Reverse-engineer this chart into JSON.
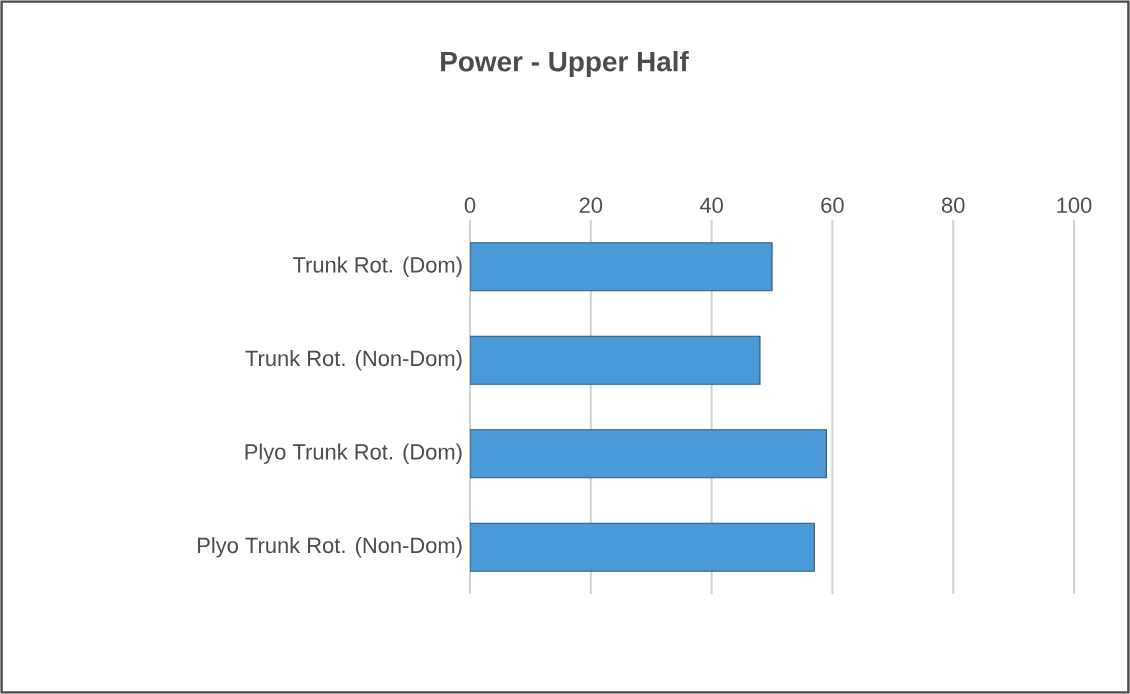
{
  "chart_data": {
    "type": "bar",
    "orientation": "horizontal",
    "title": "Power - Upper Half",
    "categories": [
      "Trunk Rot. (Dom)",
      "Trunk Rot. (Non-Dom)",
      "Plyo Trunk Rot. (Dom)",
      "Plyo Trunk Rot. (Non-Dom)"
    ],
    "values": [
      50,
      48,
      59,
      57
    ],
    "color": "#4a9ad8",
    "xlim": [
      0,
      100
    ],
    "xticks": [
      0,
      20,
      40,
      60,
      80,
      100
    ],
    "grid": "x"
  }
}
